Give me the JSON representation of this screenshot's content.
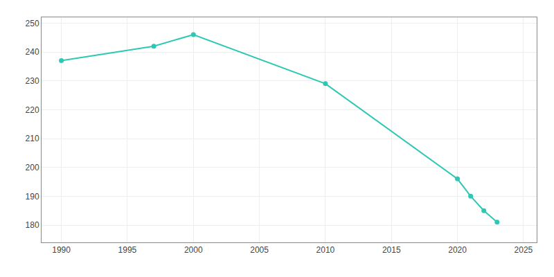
{
  "chart_data": {
    "type": "line",
    "x": [
      1990,
      1997,
      2000,
      2010,
      2020,
      2021,
      2022,
      2023
    ],
    "values": [
      237,
      242,
      246,
      229,
      196,
      190,
      185,
      181
    ],
    "color": "#2dc8b4",
    "marker": "circle",
    "xlim": [
      1988.5,
      2026
    ],
    "ylim": [
      174,
      252
    ],
    "xticks": [
      1990,
      1995,
      2000,
      2005,
      2010,
      2015,
      2020,
      2025
    ],
    "yticks": [
      180,
      190,
      200,
      210,
      220,
      230,
      240,
      250
    ],
    "grid": true
  }
}
